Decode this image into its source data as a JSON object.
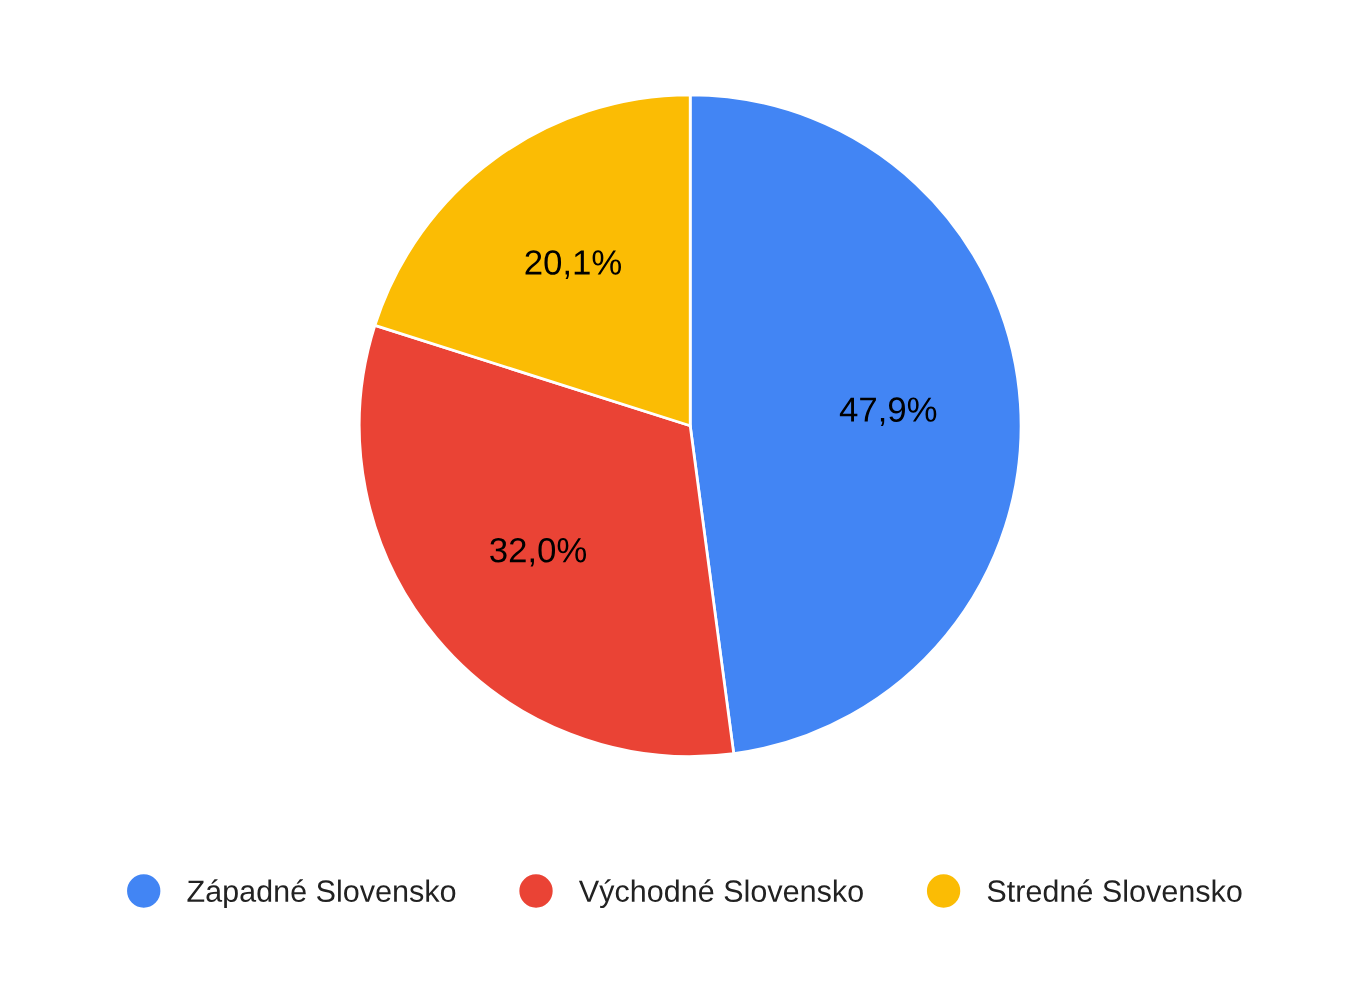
{
  "chart_data": {
    "type": "pie",
    "categories": [
      "Západné Slovensko",
      "Východné Slovensko",
      "Stredné Slovensko"
    ],
    "values": [
      47.9,
      32.0,
      20.1
    ],
    "value_labels": [
      "47,9%",
      "32,0%",
      "20,1%"
    ],
    "colors": [
      "#4285f4",
      "#ea4335",
      "#fbbc04"
    ],
    "legend": "bottom"
  }
}
